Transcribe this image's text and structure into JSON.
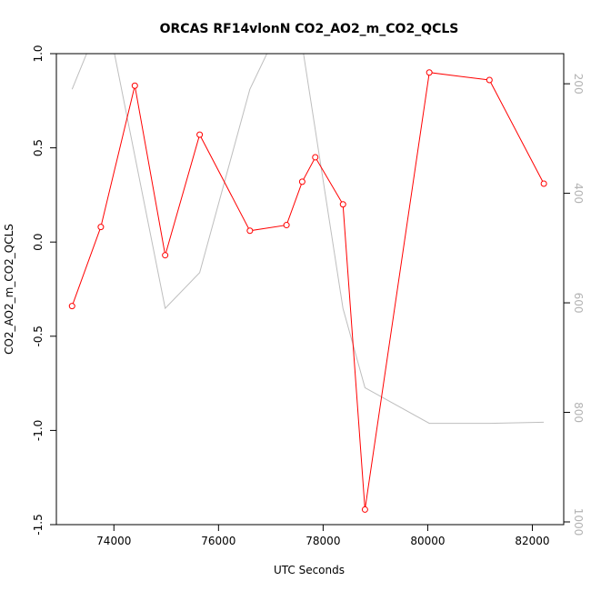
{
  "chart_data": {
    "type": "line",
    "title": "ORCAS RF14vlonN CO2_AO2_m_CO2_QCLS",
    "xlabel": "UTC Seconds",
    "ylabel": "CO2_AO2_m_CO2_QCLS",
    "xlim": [
      72900,
      82600
    ],
    "ylim": [
      -1.5,
      1.0
    ],
    "x_ticks": [
      74000,
      76000,
      78000,
      80000,
      82000
    ],
    "x_tick_labels": [
      "74000",
      "76000",
      "78000",
      "80000",
      "82000"
    ],
    "y_ticks": [
      -1.5,
      -1.0,
      -0.5,
      0.0,
      0.5,
      1.0
    ],
    "y_tick_labels": [
      "-1.5",
      "-1.0",
      "-0.5",
      "0.0",
      "0.5",
      "1.0"
    ],
    "y2_range": [
      1005,
      145
    ],
    "y2_ticks": [
      200,
      400,
      600,
      800,
      1000
    ],
    "y2_tick_labels": [
      "200",
      "400",
      "600",
      "800",
      "1000"
    ],
    "grid": false,
    "series": [
      {
        "color": "#ff0000",
        "marker": "open-circle",
        "axis": "left",
        "x": [
          73200,
          73750,
          74400,
          74980,
          75640,
          76600,
          77300,
          77600,
          77850,
          78380,
          78800,
          80030,
          81180,
          82220
        ],
        "y": [
          -0.34,
          0.08,
          0.83,
          -0.07,
          0.57,
          0.06,
          0.09,
          0.32,
          0.45,
          0.2,
          -1.42,
          0.9,
          0.86,
          0.31
        ]
      },
      {
        "color": "#bebebe",
        "marker": "none",
        "axis": "right",
        "x": [
          73200,
          73500,
          74000,
          74980,
          75640,
          76600,
          77000,
          77600,
          78380,
          78800,
          80030,
          81180,
          82220
        ],
        "y": [
          210,
          140,
          140,
          610,
          545,
          210,
          130,
          130,
          610,
          755,
          820,
          820,
          818
        ]
      }
    ]
  }
}
